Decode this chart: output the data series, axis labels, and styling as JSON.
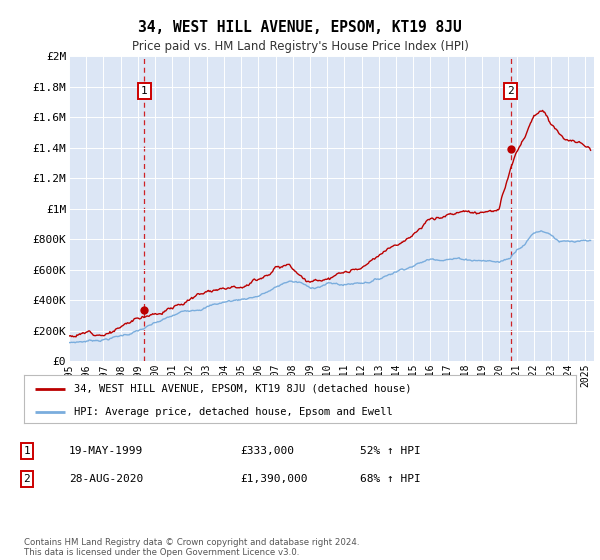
{
  "title": "34, WEST HILL AVENUE, EPSOM, KT19 8JU",
  "subtitle": "Price paid vs. HM Land Registry's House Price Index (HPI)",
  "background_color": "#dce6f5",
  "plot_bg_color": "#dce6f5",
  "ylim": [
    0,
    2000000
  ],
  "yticks": [
    0,
    200000,
    400000,
    600000,
    800000,
    1000000,
    1200000,
    1400000,
    1600000,
    1800000,
    2000000
  ],
  "ytick_labels": [
    "£0",
    "£200K",
    "£400K",
    "£600K",
    "£800K",
    "£1M",
    "£1.2M",
    "£1.4M",
    "£1.6M",
    "£1.8M",
    "£2M"
  ],
  "red_line_color": "#bb0000",
  "blue_line_color": "#7aaddd",
  "marker1_date_x": 1999.38,
  "marker1_price": 333000,
  "marker2_date_x": 2020.65,
  "marker2_price": 1390000,
  "legend_line1": "34, WEST HILL AVENUE, EPSOM, KT19 8JU (detached house)",
  "legend_line2": "HPI: Average price, detached house, Epsom and Ewell",
  "table_row1": [
    "1",
    "19-MAY-1999",
    "£333,000",
    "52% ↑ HPI"
  ],
  "table_row2": [
    "2",
    "28-AUG-2020",
    "£1,390,000",
    "68% ↑ HPI"
  ],
  "footer": "Contains HM Land Registry data © Crown copyright and database right 2024.\nThis data is licensed under the Open Government Licence v3.0.",
  "xmin": 1995.0,
  "xmax": 2025.5
}
